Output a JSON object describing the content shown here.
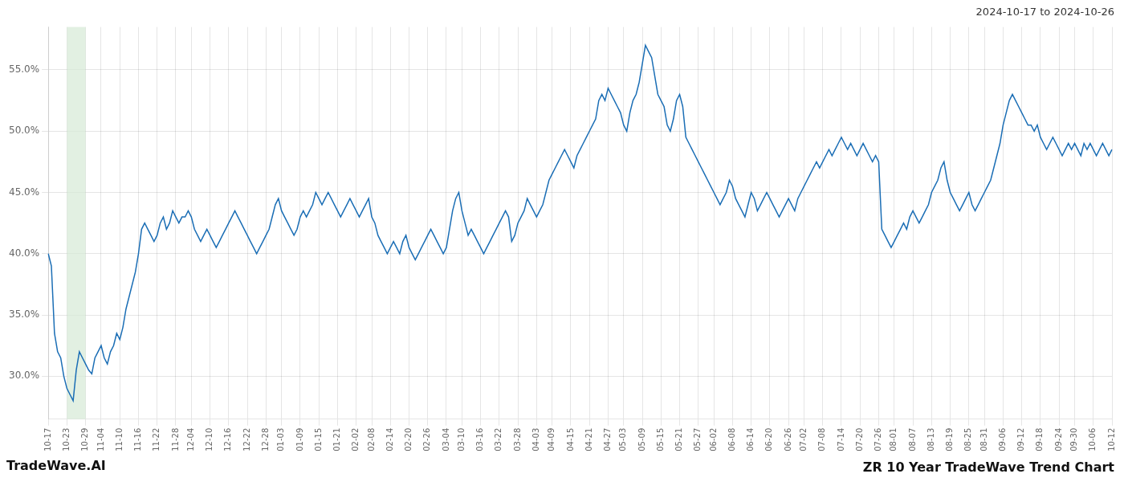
{
  "chart_data": {
    "type": "line",
    "title": "ZR 10 Year TradeWave Trend Chart",
    "subtitle": "2024-10-17 to 2024-10-26",
    "annotations": [
      "TradeWave.AI"
    ],
    "color": "#1b6eb5",
    "grid": true,
    "ylim": [
      26.5,
      58.5
    ],
    "yticks": [
      {
        "value": 30.0,
        "label": "30.0%"
      },
      {
        "value": 35.0,
        "label": "35.0%"
      },
      {
        "value": 40.0,
        "label": "40.0%"
      },
      {
        "value": 45.0,
        "label": "45.0%"
      },
      {
        "value": 50.0,
        "label": "50.0%"
      },
      {
        "value": 55.0,
        "label": "55.0%"
      }
    ],
    "highlight": {
      "start": "10-23",
      "end": "10-29",
      "color": "#d6ead6"
    },
    "categories": [
      "10-17",
      null,
      null,
      null,
      null,
      null,
      "10-23",
      null,
      null,
      null,
      null,
      null,
      "10-29",
      null,
      null,
      null,
      null,
      "11-04",
      null,
      null,
      null,
      null,
      null,
      "11-10",
      null,
      null,
      null,
      null,
      null,
      "11-16",
      null,
      null,
      null,
      null,
      null,
      "11-22",
      null,
      null,
      null,
      null,
      null,
      "11-28",
      null,
      null,
      null,
      null,
      "12-04",
      null,
      null,
      null,
      null,
      null,
      "12-10",
      null,
      null,
      null,
      null,
      null,
      "12-16",
      null,
      null,
      null,
      null,
      null,
      "12-22",
      null,
      null,
      null,
      null,
      null,
      "12-28",
      null,
      null,
      null,
      null,
      "01-03",
      null,
      null,
      null,
      null,
      null,
      "01-09",
      null,
      null,
      null,
      null,
      null,
      "01-15",
      null,
      null,
      null,
      null,
      null,
      "01-21",
      null,
      null,
      null,
      null,
      null,
      "02-02",
      null,
      null,
      null,
      null,
      "02-08",
      null,
      null,
      null,
      null,
      null,
      "02-14",
      null,
      null,
      null,
      null,
      null,
      "02-20",
      null,
      null,
      null,
      null,
      null,
      "02-26",
      null,
      null,
      null,
      null,
      null,
      "03-04",
      null,
      null,
      null,
      null,
      "03-10",
      null,
      null,
      null,
      null,
      null,
      "03-16",
      null,
      null,
      null,
      null,
      null,
      "03-22",
      null,
      null,
      null,
      null,
      null,
      "03-28",
      null,
      null,
      null,
      null,
      null,
      "04-03",
      null,
      null,
      null,
      null,
      "04-09",
      null,
      null,
      null,
      null,
      null,
      "04-15",
      null,
      null,
      null,
      null,
      null,
      "04-21",
      null,
      null,
      null,
      null,
      null,
      "04-27",
      null,
      null,
      null,
      null,
      "05-03",
      null,
      null,
      null,
      null,
      null,
      "05-09",
      null,
      null,
      null,
      null,
      null,
      "05-15",
      null,
      null,
      null,
      null,
      null,
      "05-21",
      null,
      null,
      null,
      null,
      null,
      "05-27",
      null,
      null,
      null,
      null,
      "06-02",
      null,
      null,
      null,
      null,
      null,
      "06-08",
      null,
      null,
      null,
      null,
      null,
      "06-14",
      null,
      null,
      null,
      null,
      null,
      "06-20",
      null,
      null,
      null,
      null,
      null,
      "06-26",
      null,
      null,
      null,
      null,
      "07-02",
      null,
      null,
      null,
      null,
      null,
      "07-08",
      null,
      null,
      null,
      null,
      null,
      "07-14",
      null,
      null,
      null,
      null,
      null,
      "07-20",
      null,
      null,
      null,
      null,
      null,
      "07-26",
      null,
      null,
      null,
      null,
      "08-01",
      null,
      null,
      null,
      null,
      null,
      "08-07",
      null,
      null,
      null,
      null,
      null,
      "08-13",
      null,
      null,
      null,
      null,
      null,
      "08-19",
      null,
      null,
      null,
      null,
      null,
      "08-25",
      null,
      null,
      null,
      null,
      "08-31",
      null,
      null,
      null,
      null,
      null,
      "09-06",
      null,
      null,
      null,
      null,
      null,
      "09-12",
      null,
      null,
      null,
      null,
      null,
      "09-18",
      null,
      null,
      null,
      null,
      null,
      "09-24",
      null,
      null,
      null,
      null,
      "09-30",
      null,
      null,
      null,
      null,
      null,
      "10-06",
      null,
      null,
      null,
      null,
      null,
      "10-12"
    ],
    "values": [
      40.0,
      39.0,
      33.5,
      32.0,
      31.5,
      30.0,
      29.0,
      28.5,
      28.0,
      30.5,
      32.0,
      31.5,
      31.0,
      30.5,
      30.2,
      31.5,
      32.0,
      32.5,
      31.5,
      31.0,
      32.0,
      32.5,
      33.5,
      33.0,
      34.0,
      35.5,
      36.5,
      37.5,
      38.5,
      40.0,
      42.0,
      42.5,
      42.0,
      41.5,
      41.0,
      41.5,
      42.5,
      43.0,
      42.0,
      42.5,
      43.5,
      43.0,
      42.5,
      43.0,
      43.0,
      43.5,
      43.0,
      42.0,
      41.5,
      41.0,
      41.5,
      42.0,
      41.5,
      41.0,
      40.5,
      41.0,
      41.5,
      42.0,
      42.5,
      43.0,
      43.5,
      43.0,
      42.5,
      42.0,
      41.5,
      41.0,
      40.5,
      40.0,
      40.5,
      41.0,
      41.5,
      42.0,
      43.0,
      44.0,
      44.5,
      43.5,
      43.0,
      42.5,
      42.0,
      41.5,
      42.0,
      43.0,
      43.5,
      43.0,
      43.5,
      44.0,
      45.0,
      44.5,
      44.0,
      44.5,
      45.0,
      44.5,
      44.0,
      43.5,
      43.0,
      43.5,
      44.0,
      44.5,
      44.0,
      43.5,
      43.0,
      43.5,
      44.0,
      44.5,
      43.0,
      42.5,
      41.5,
      41.0,
      40.5,
      40.0,
      40.5,
      41.0,
      40.5,
      40.0,
      41.0,
      41.5,
      40.5,
      40.0,
      39.5,
      40.0,
      40.5,
      41.0,
      41.5,
      42.0,
      41.5,
      41.0,
      40.5,
      40.0,
      40.5,
      42.0,
      43.5,
      44.5,
      45.0,
      43.5,
      42.5,
      41.5,
      42.0,
      41.5,
      41.0,
      40.5,
      40.0,
      40.5,
      41.0,
      41.5,
      42.0,
      42.5,
      43.0,
      43.5,
      43.0,
      41.0,
      41.5,
      42.5,
      43.0,
      43.5,
      44.5,
      44.0,
      43.5,
      43.0,
      43.5,
      44.0,
      45.0,
      46.0,
      46.5,
      47.0,
      47.5,
      48.0,
      48.5,
      48.0,
      47.5,
      47.0,
      48.0,
      48.5,
      49.0,
      49.5,
      50.0,
      50.5,
      51.0,
      52.5,
      53.0,
      52.5,
      53.5,
      53.0,
      52.5,
      52.0,
      51.5,
      50.5,
      50.0,
      51.5,
      52.5,
      53.0,
      54.0,
      55.5,
      57.0,
      56.5,
      56.0,
      54.5,
      53.0,
      52.5,
      52.0,
      50.5,
      50.0,
      51.0,
      52.5,
      53.0,
      52.0,
      49.5,
      49.0,
      48.5,
      48.0,
      47.5,
      47.0,
      46.5,
      46.0,
      45.5,
      45.0,
      44.5,
      44.0,
      44.5,
      45.0,
      46.0,
      45.5,
      44.5,
      44.0,
      43.5,
      43.0,
      44.0,
      45.0,
      44.5,
      43.5,
      44.0,
      44.5,
      45.0,
      44.5,
      44.0,
      43.5,
      43.0,
      43.5,
      44.0,
      44.5,
      44.0,
      43.5,
      44.5,
      45.0,
      45.5,
      46.0,
      46.5,
      47.0,
      47.5,
      47.0,
      47.5,
      48.0,
      48.5,
      48.0,
      48.5,
      49.0,
      49.5,
      49.0,
      48.5,
      49.0,
      48.5,
      48.0,
      48.5,
      49.0,
      48.5,
      48.0,
      47.5,
      48.0,
      47.5,
      42.0,
      41.5,
      41.0,
      40.5,
      41.0,
      41.5,
      42.0,
      42.5,
      42.0,
      43.0,
      43.5,
      43.0,
      42.5,
      43.0,
      43.5,
      44.0,
      45.0,
      45.5,
      46.0,
      47.0,
      47.5,
      46.0,
      45.0,
      44.5,
      44.0,
      43.5,
      44.0,
      44.5,
      45.0,
      44.0,
      43.5,
      44.0,
      44.5,
      45.0,
      45.5,
      46.0,
      47.0,
      48.0,
      49.0,
      50.5,
      51.5,
      52.5,
      53.0,
      52.5,
      52.0,
      51.5,
      51.0,
      50.5,
      50.5,
      50.0,
      50.5,
      49.5,
      49.0,
      48.5,
      49.0,
      49.5,
      49.0,
      48.5,
      48.0,
      48.5,
      49.0,
      48.5,
      49.0,
      48.5,
      48.0,
      49.0,
      48.5,
      49.0,
      48.5,
      48.0,
      48.5,
      49.0,
      48.5,
      48.0,
      48.5
    ]
  }
}
